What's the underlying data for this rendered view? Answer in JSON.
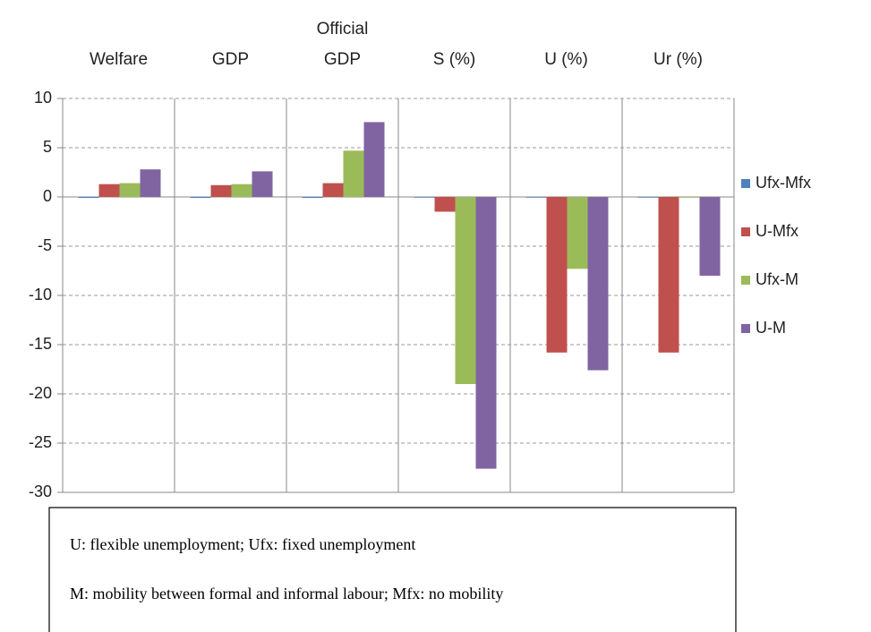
{
  "chart_data": {
    "type": "bar",
    "categories": [
      "Welfare",
      "GDP",
      "Official\nGDP",
      "S (%)",
      "U (%)",
      "Ur (%)"
    ],
    "series": [
      {
        "name": "Ufx-Mfx",
        "color": "#4f81bd",
        "values": [
          -0.1,
          -0.1,
          -0.1,
          0,
          0,
          0
        ]
      },
      {
        "name": "U-Mfx",
        "color": "#c0504d",
        "values": [
          1.3,
          1.2,
          1.4,
          -1.5,
          -15.8,
          -15.8
        ]
      },
      {
        "name": "Ufx-M",
        "color": "#9bbb59",
        "values": [
          1.4,
          1.3,
          4.7,
          -19,
          -7.3,
          0
        ]
      },
      {
        "name": "U-M",
        "color": "#8064a2",
        "values": [
          2.8,
          2.6,
          7.6,
          -27.6,
          -17.6,
          -8.0
        ]
      }
    ],
    "ylim": [
      -30,
      10
    ],
    "yticks": [
      -30,
      -25,
      -20,
      -15,
      -10,
      -5,
      0,
      5,
      10
    ],
    "grid": true,
    "legend": "right",
    "note": [
      "U: flexible unemployment; Ufx: fixed unemployment",
      "M: mobility between formal and informal labour; Mfx: no mobility"
    ]
  }
}
